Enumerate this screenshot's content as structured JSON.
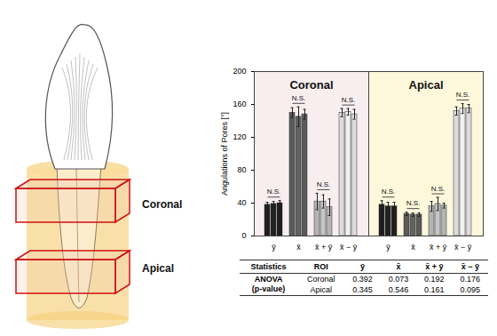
{
  "chart_data": {
    "type": "bar",
    "y_label": "Angulations of Pores [°]",
    "ylim": [
      0,
      200
    ],
    "yticks": [
      0,
      40,
      80,
      120,
      160,
      200
    ],
    "panels": [
      "Coronal",
      "Apical"
    ],
    "categories": [
      "ȳ",
      "x̄",
      "x̄ + ȳ",
      "x̄ − ȳ"
    ],
    "colors": [
      "#1e1e1e",
      "#5a5a5a",
      "#b4b4b4",
      "#dcdcdc"
    ],
    "values": [
      [
        [
          38,
          39,
          40
        ],
        [
          150,
          145,
          148
        ],
        [
          42,
          42,
          35
        ],
        [
          150,
          151,
          148
        ]
      ],
      [
        [
          38,
          36,
          36
        ],
        [
          27,
          26,
          26
        ],
        [
          36,
          39,
          37
        ],
        [
          152,
          155,
          155
        ]
      ]
    ],
    "errors": [
      [
        [
          3,
          3,
          3
        ],
        [
          6,
          12,
          6
        ],
        [
          10,
          8,
          10
        ],
        [
          5,
          4,
          6
        ]
      ],
      [
        [
          5,
          5,
          5
        ],
        [
          2,
          2,
          2
        ],
        [
          6,
          8,
          3
        ],
        [
          5,
          6,
          5
        ]
      ]
    ],
    "annotations": [
      [
        "N.S.",
        "N.S.",
        "N.S.",
        "N.S."
      ],
      [
        "N.S.",
        "N.S.",
        "N.S.",
        "N.S."
      ]
    ]
  },
  "diagram": {
    "labels": [
      "Coronal",
      "Apical"
    ]
  },
  "table": {
    "header": [
      "Statistics",
      "ROI",
      "ȳ",
      "x̄",
      "x̄ + ȳ",
      "x̄ − ȳ"
    ],
    "row_label": [
      "ANOVA",
      "(p-value)"
    ],
    "rows": [
      [
        "Coronal",
        0.392,
        0.073,
        0.192,
        0.176
      ],
      [
        "Apical",
        0.345,
        0.546,
        0.161,
        0.095
      ]
    ]
  }
}
